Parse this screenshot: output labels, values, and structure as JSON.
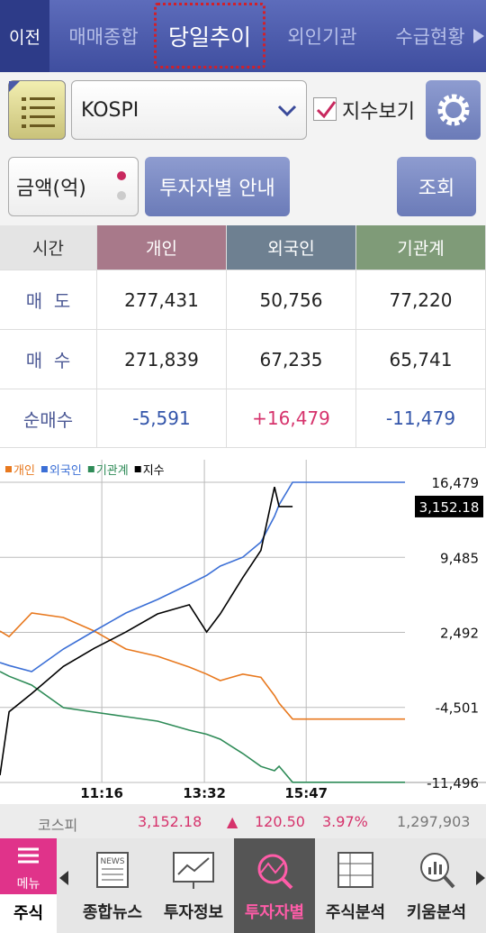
{
  "tabs": {
    "back": "이전",
    "items": [
      "매매종합",
      "당일추이",
      "외인기관",
      "수급현황"
    ],
    "selected": 1
  },
  "controls": {
    "market": "KOSPI",
    "index_check": "지수보기",
    "index_checked": true,
    "unit": "금액(억)",
    "guide_button": "투자자별 안내",
    "query_button": "조회"
  },
  "table": {
    "header": [
      "시간",
      "개인",
      "외국인",
      "기관계"
    ],
    "rows": [
      [
        "매  도",
        "277,431",
        "50,756",
        "77,220"
      ],
      [
        "매  수",
        "271,839",
        "67,235",
        "65,741"
      ],
      [
        "순매수",
        "-5,591",
        "+16,479",
        "-11,479"
      ]
    ]
  },
  "chart_data": {
    "type": "line",
    "legend": "top-left",
    "grid": true,
    "x": [
      541,
      553,
      583,
      625,
      666,
      708,
      750,
      792,
      815,
      833,
      863,
      887,
      905,
      911,
      929,
      1078
    ],
    "xlim": [
      541,
      1078
    ],
    "xticks": [
      {
        "value": 676,
        "label": "11:16"
      },
      {
        "value": 812,
        "label": "13:32"
      },
      {
        "value": 947,
        "label": "15:47"
      }
    ],
    "ylim": [
      -11496,
      18579
    ],
    "yticks": [
      {
        "value": 16479,
        "label": "16,479"
      },
      {
        "value": 9485,
        "label": "9,485"
      },
      {
        "value": 2492,
        "label": "2,492"
      },
      {
        "value": -4501,
        "label": "-4,501"
      },
      {
        "value": -11496,
        "label": "-11,496"
      }
    ],
    "y2lim": [
      3000,
      3178
    ],
    "y2ticks": [
      {
        "value": 3152.18,
        "label": "3,152.18"
      }
    ],
    "series": [
      {
        "name": "개인",
        "color": "#e8791f",
        "values": [
          2619,
          2100,
          4299,
          3879,
          2619,
          939,
          267,
          -741,
          -1400,
          -2001,
          -1400,
          -1700,
          -3400,
          -4101,
          -5591,
          -5591
        ]
      },
      {
        "name": "외국인",
        "color": "#3b6fd6",
        "values": [
          -320,
          -600,
          -1161,
          939,
          2619,
          4299,
          5559,
          6987,
          7800,
          8667,
          9500,
          10900,
          13300,
          14379,
          16479,
          16479
        ]
      },
      {
        "name": "기관계",
        "color": "#2e8b57",
        "values": [
          -1161,
          -1600,
          -2421,
          -4521,
          -4941,
          -5361,
          -5781,
          -6621,
          -7000,
          -7461,
          -8800,
          -10000,
          -10400,
          -9981,
          -11479,
          -11479
        ]
      },
      {
        "name": "지수",
        "color": "#000000",
        "axis": "y2",
        "values": [
          3004,
          3039,
          3049,
          3064,
          3074,
          3083,
          3093,
          3098,
          3083,
          3093,
          3113,
          3128,
          3163,
          3152.18,
          3152.18,
          null
        ]
      }
    ]
  },
  "status": {
    "name": "코스피",
    "price": "3,152.18",
    "arrow": "▲",
    "change": "120.50",
    "rate": "3.97%",
    "volume": "1,297,903"
  },
  "nav": {
    "menu": "메뉴",
    "menu_sub": "주식",
    "news_icon": "NEWS",
    "items": [
      "종합뉴스",
      "투자정보",
      "투자자별",
      "주식분석",
      "키움분석"
    ],
    "selected": 2
  }
}
